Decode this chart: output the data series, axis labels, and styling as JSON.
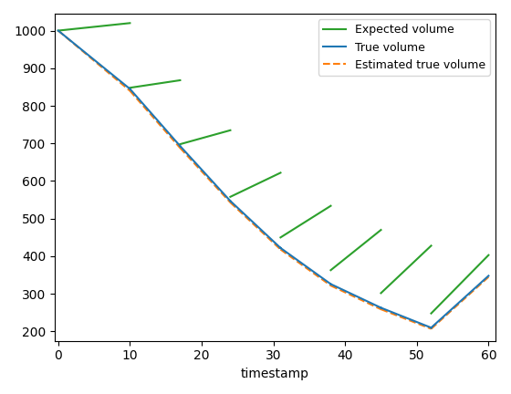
{
  "title": "",
  "xlabel": "timestamp",
  "ylabel": "",
  "legend": [
    "Expected volume",
    "True volume",
    "Estimated true volume"
  ],
  "line_colors": [
    "#2ca02c",
    "#1f77b4",
    "#ff7f0e"
  ],
  "xlim": [
    -0.5,
    61
  ],
  "ylim": [
    175,
    1045
  ],
  "figsize": [
    5.6,
    4.32
  ],
  "dpi": 100,
  "breakpoints": [
    0,
    10,
    17,
    24,
    31,
    38,
    45,
    52,
    60
  ],
  "seg_starts_true": [
    1000,
    845,
    693,
    547,
    422,
    326,
    263,
    210
  ],
  "seg_ends_true": [
    845,
    693,
    547,
    422,
    326,
    263,
    210,
    348
  ],
  "seg_starts_est": [
    1000,
    840,
    688,
    543,
    418,
    322,
    259,
    207
  ],
  "seg_ends_est": [
    840,
    688,
    543,
    418,
    322,
    259,
    207,
    345
  ],
  "seg_starts_exp": [
    1000,
    848,
    698,
    558,
    450,
    363,
    302,
    248
  ],
  "seg_ends_exp": [
    1020,
    868,
    735,
    622,
    534,
    470,
    428,
    403
  ]
}
